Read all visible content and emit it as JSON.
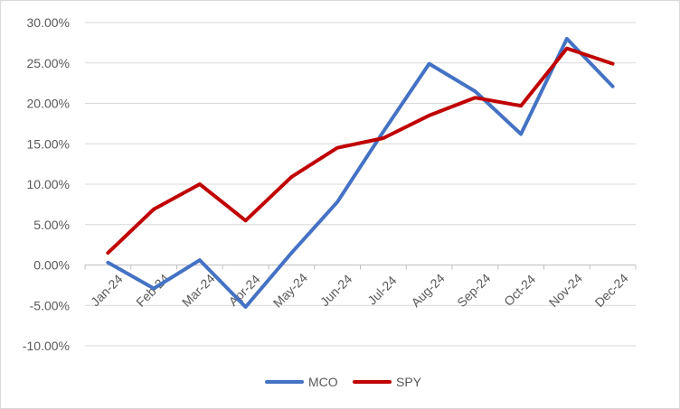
{
  "chart_data": {
    "type": "line",
    "title": "",
    "xlabel": "",
    "ylabel": "",
    "categories": [
      "Jan-24",
      "Feb-24",
      "Mar-24",
      "Apr-24",
      "May-24",
      "Jun-24",
      "Jul-24",
      "Aug-24",
      "Sep-24",
      "Oct-24",
      "Nov-24",
      "Dec-24"
    ],
    "ylim": [
      -0.1,
      0.3
    ],
    "y_ticks": [
      0.3,
      0.25,
      0.2,
      0.15,
      0.1,
      0.05,
      0.0,
      -0.05,
      -0.1
    ],
    "y_tick_labels": [
      "30.00%",
      "25.00%",
      "20.00%",
      "15.00%",
      "10.00%",
      "5.00%",
      "0.00%",
      "-5.00%",
      "-10.00%"
    ],
    "grid": true,
    "legend_position": "bottom",
    "series": [
      {
        "name": "MCO",
        "color": "#4472C4",
        "values": [
          0.003,
          -0.029,
          0.006,
          -0.052,
          0.015,
          0.078,
          0.165,
          0.249,
          0.215,
          0.162,
          0.28,
          0.221
        ]
      },
      {
        "name": "SPY",
        "color": "#C00000",
        "values": [
          0.015,
          0.069,
          0.1,
          0.055,
          0.109,
          0.145,
          0.157,
          0.185,
          0.207,
          0.197,
          0.268,
          0.249
        ]
      }
    ]
  }
}
